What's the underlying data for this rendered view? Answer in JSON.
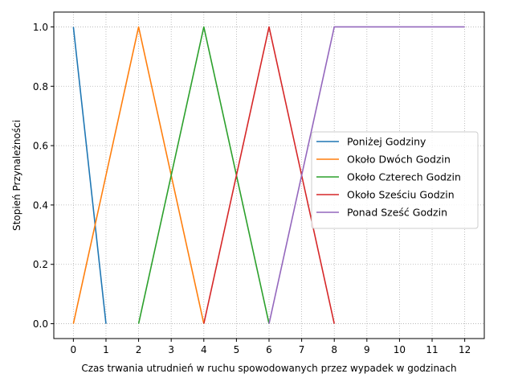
{
  "chart_data": {
    "type": "line",
    "title": "",
    "xlabel": "Czas trwania utrudnień w ruchu spowodowanych przez wypadek w godzinach",
    "ylabel": "Stopień Przynależności",
    "xlim": [
      -0.6,
      12.6
    ],
    "ylim": [
      -0.05,
      1.05
    ],
    "xticks": [
      0,
      1,
      2,
      3,
      4,
      5,
      6,
      7,
      8,
      9,
      10,
      11,
      12
    ],
    "yticks": [
      0.0,
      0.2,
      0.4,
      0.6,
      0.8,
      1.0
    ],
    "ytick_labels": [
      "0.0",
      "0.2",
      "0.4",
      "0.6",
      "0.8",
      "1.0"
    ],
    "grid": true,
    "legend_position": "center-right",
    "series": [
      {
        "name": "Poniżej Godziny",
        "color": "#1f77b4",
        "x": [
          0,
          1
        ],
        "y": [
          1,
          0
        ]
      },
      {
        "name": "Około Dwóch Godzin",
        "color": "#ff7f0e",
        "x": [
          0,
          2,
          4
        ],
        "y": [
          0,
          1,
          0
        ]
      },
      {
        "name": "Około Czterech Godzin",
        "color": "#2ca02c",
        "x": [
          2,
          4,
          6
        ],
        "y": [
          0,
          1,
          0
        ]
      },
      {
        "name": "Około Sześciu Godzin",
        "color": "#d62728",
        "x": [
          4,
          6,
          8
        ],
        "y": [
          0,
          1,
          0
        ]
      },
      {
        "name": "Ponad Sześć Godzin",
        "color": "#9467bd",
        "x": [
          6,
          8,
          12
        ],
        "y": [
          0,
          1,
          1
        ]
      }
    ]
  }
}
